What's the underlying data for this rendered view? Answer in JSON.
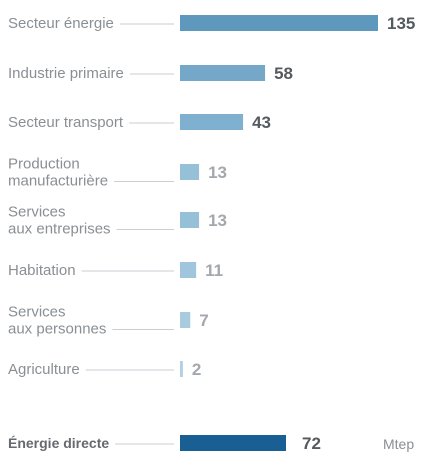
{
  "chart_data": {
    "type": "bar",
    "orientation": "horizontal",
    "categories": [
      [
        "Secteur énergie"
      ],
      [
        "Industrie primaire"
      ],
      [
        "Secteur transport"
      ],
      [
        "Production",
        "manufacturière"
      ],
      [
        "Services",
        "aux entreprises"
      ],
      [
        "Habitation"
      ],
      [
        "Services",
        "aux personnes"
      ],
      [
        "Agriculture"
      ]
    ],
    "values": [
      135,
      58,
      43,
      13,
      13,
      11,
      7,
      2
    ],
    "colors": [
      "#5f98bd",
      "#74a7c8",
      "#7fb0cf",
      "#96bfd8",
      "#96bfd8",
      "#a0c5dc",
      "#a9cbe0",
      "#b3d1e4"
    ],
    "value_colors": [
      "#555a5f",
      "#555a5f",
      "#555a5f",
      "#a3a8ad",
      "#a3a8ad",
      "#a3a8ad",
      "#a3a8ad",
      "#a3a8ad"
    ],
    "total": {
      "label": "Énergie directe",
      "value": 72,
      "unit": "Mtep",
      "color": "#1a5f94",
      "value_color": "#555a5f"
    }
  }
}
